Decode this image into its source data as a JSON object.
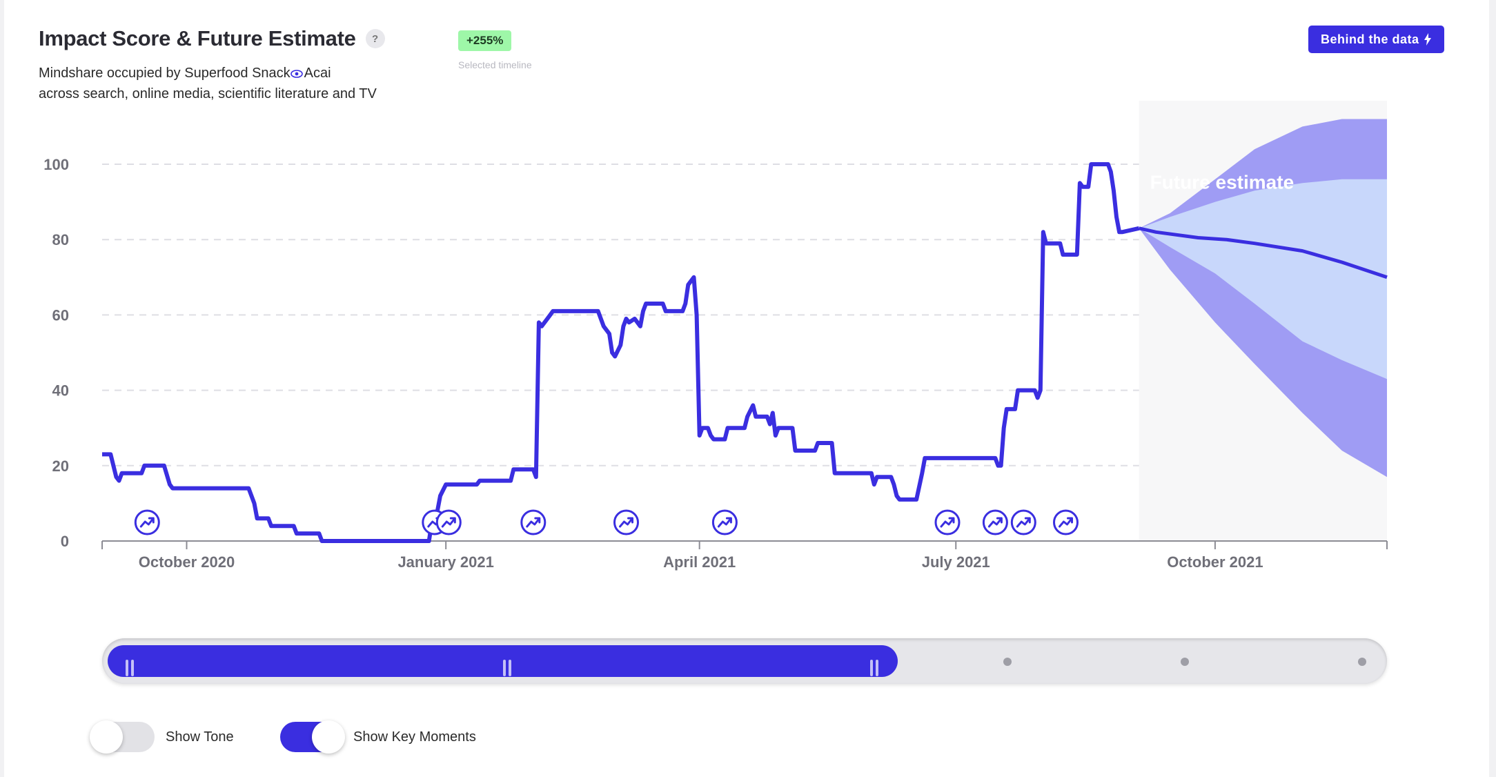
{
  "header": {
    "title": "Impact Score & Future Estimate",
    "help": "?",
    "badge": "+255%",
    "badge_caption": "Selected timeline",
    "subtitle_line1_prefix": "Mindshare occupied by Superfood Snack",
    "subtitle_line1_topic": "Acai",
    "subtitle_line2": "across search, online media, scientific literature and TV",
    "behind_button": "Behind the data"
  },
  "colors": {
    "accent": "#3a2ee0",
    "band_outer": "#9f9cf4",
    "band_inner": "#c8d7fb",
    "badge": "#9ef7a8"
  },
  "icons": [
    "help-icon",
    "eye-icon",
    "bolt-icon",
    "key-moment-icon",
    "slider-handle-icon"
  ],
  "chart_data": {
    "type": "line",
    "title": "Impact Score & Future Estimate",
    "ylim": [
      0,
      100
    ],
    "yticks": [
      0,
      20,
      40,
      60,
      80,
      100
    ],
    "xlim": [
      "2020-09-01",
      "2021-12-01"
    ],
    "xticks": [
      {
        "date": "2020-10-01",
        "label": "October 2020"
      },
      {
        "date": "2021-01-01",
        "label": "January 2021"
      },
      {
        "date": "2021-04-01",
        "label": "April 2021"
      },
      {
        "date": "2021-07-01",
        "label": "July 2021"
      },
      {
        "date": "2021-10-01",
        "label": "October 2021"
      }
    ],
    "grid": true,
    "series": [
      {
        "kind": "history",
        "points": [
          [
            "2020-09-01",
            23
          ],
          [
            "2020-09-04",
            23
          ],
          [
            "2020-09-06",
            17
          ],
          [
            "2020-09-07",
            16
          ],
          [
            "2020-09-08",
            18
          ],
          [
            "2020-09-15",
            18
          ],
          [
            "2020-09-16",
            20
          ],
          [
            "2020-09-23",
            20
          ],
          [
            "2020-09-25",
            15
          ],
          [
            "2020-09-26",
            14
          ],
          [
            "2020-10-23",
            14
          ],
          [
            "2020-10-25",
            10
          ],
          [
            "2020-10-26",
            6
          ],
          [
            "2020-10-30",
            6
          ],
          [
            "2020-10-31",
            4
          ],
          [
            "2020-11-08",
            4
          ],
          [
            "2020-11-09",
            2
          ],
          [
            "2020-11-17",
            2
          ],
          [
            "2020-11-18",
            0
          ],
          [
            "2020-12-26",
            0
          ],
          [
            "2020-12-27",
            5
          ],
          [
            "2020-12-29",
            8
          ],
          [
            "2020-12-30",
            12
          ],
          [
            "2021-01-01",
            15
          ],
          [
            "2021-01-12",
            15
          ],
          [
            "2021-01-13",
            16
          ],
          [
            "2021-01-24",
            16
          ],
          [
            "2021-01-25",
            19
          ],
          [
            "2021-02-01",
            19
          ],
          [
            "2021-02-02",
            17
          ],
          [
            "2021-02-03",
            58
          ],
          [
            "2021-02-04",
            57
          ],
          [
            "2021-02-06",
            59
          ],
          [
            "2021-02-07",
            60
          ],
          [
            "2021-02-08",
            61
          ],
          [
            "2021-02-24",
            61
          ],
          [
            "2021-02-26",
            57
          ],
          [
            "2021-02-28",
            55
          ],
          [
            "2021-03-01",
            50
          ],
          [
            "2021-03-02",
            49
          ],
          [
            "2021-03-04",
            52
          ],
          [
            "2021-03-05",
            57
          ],
          [
            "2021-03-06",
            59
          ],
          [
            "2021-03-07",
            58
          ],
          [
            "2021-03-09",
            59
          ],
          [
            "2021-03-11",
            57
          ],
          [
            "2021-03-12",
            61
          ],
          [
            "2021-03-13",
            63
          ],
          [
            "2021-03-19",
            63
          ],
          [
            "2021-03-20",
            61
          ],
          [
            "2021-03-26",
            61
          ],
          [
            "2021-03-27",
            63
          ],
          [
            "2021-03-28",
            68
          ],
          [
            "2021-03-30",
            70
          ],
          [
            "2021-03-31",
            60
          ],
          [
            "2021-04-01",
            28
          ],
          [
            "2021-04-02",
            30
          ],
          [
            "2021-04-04",
            30
          ],
          [
            "2021-04-05",
            28
          ],
          [
            "2021-04-06",
            27
          ],
          [
            "2021-04-10",
            27
          ],
          [
            "2021-04-11",
            30
          ],
          [
            "2021-04-17",
            30
          ],
          [
            "2021-04-18",
            33
          ],
          [
            "2021-04-20",
            36
          ],
          [
            "2021-04-21",
            33
          ],
          [
            "2021-04-25",
            33
          ],
          [
            "2021-04-26",
            31
          ],
          [
            "2021-04-27",
            34
          ],
          [
            "2021-04-28",
            28
          ],
          [
            "2021-04-29",
            30
          ],
          [
            "2021-05-04",
            30
          ],
          [
            "2021-05-05",
            24
          ],
          [
            "2021-05-12",
            24
          ],
          [
            "2021-05-13",
            26
          ],
          [
            "2021-05-18",
            26
          ],
          [
            "2021-05-19",
            18
          ],
          [
            "2021-06-01",
            18
          ],
          [
            "2021-06-02",
            15
          ],
          [
            "2021-06-03",
            17
          ],
          [
            "2021-06-08",
            17
          ],
          [
            "2021-06-09",
            15
          ],
          [
            "2021-06-10",
            12
          ],
          [
            "2021-06-11",
            11
          ],
          [
            "2021-06-17",
            11
          ],
          [
            "2021-06-19",
            18
          ],
          [
            "2021-06-20",
            22
          ],
          [
            "2021-07-15",
            22
          ],
          [
            "2021-07-16",
            20
          ],
          [
            "2021-07-17",
            20
          ],
          [
            "2021-07-18",
            30
          ],
          [
            "2021-07-19",
            35
          ],
          [
            "2021-07-22",
            35
          ],
          [
            "2021-07-23",
            40
          ],
          [
            "2021-07-29",
            40
          ],
          [
            "2021-07-30",
            38
          ],
          [
            "2021-07-31",
            40
          ],
          [
            "2021-08-01",
            82
          ],
          [
            "2021-08-02",
            79
          ],
          [
            "2021-08-07",
            79
          ],
          [
            "2021-08-08",
            76
          ],
          [
            "2021-08-13",
            76
          ],
          [
            "2021-08-14",
            95
          ],
          [
            "2021-08-15",
            94
          ],
          [
            "2021-08-17",
            94
          ],
          [
            "2021-08-18",
            100
          ],
          [
            "2021-08-24",
            100
          ],
          [
            "2021-08-25",
            98
          ],
          [
            "2021-08-26",
            93
          ],
          [
            "2021-08-27",
            86
          ],
          [
            "2021-08-28",
            82
          ],
          [
            "2021-08-29",
            82
          ],
          [
            "2021-09-04",
            83
          ]
        ]
      },
      {
        "kind": "forecast",
        "label": "Future estimate",
        "points": [
          [
            "2021-09-04",
            83
          ],
          [
            "2021-09-10",
            82
          ],
          [
            "2021-09-25",
            80.5
          ],
          [
            "2021-10-05",
            80
          ],
          [
            "2021-10-15",
            79
          ],
          [
            "2021-11-01",
            77
          ],
          [
            "2021-11-15",
            74
          ],
          [
            "2021-12-01",
            70
          ]
        ],
        "band_outer": [
          [
            "2021-09-04",
            83,
            83
          ],
          [
            "2021-09-15",
            87,
            72
          ],
          [
            "2021-10-01",
            96,
            58
          ],
          [
            "2021-10-15",
            104,
            47
          ],
          [
            "2021-11-01",
            110,
            34
          ],
          [
            "2021-11-15",
            112,
            24
          ],
          [
            "2021-12-01",
            112,
            17
          ]
        ],
        "band_inner": [
          [
            "2021-09-04",
            83,
            83
          ],
          [
            "2021-09-15",
            86,
            78
          ],
          [
            "2021-10-01",
            90,
            71
          ],
          [
            "2021-10-15",
            93,
            63
          ],
          [
            "2021-11-01",
            95,
            53
          ],
          [
            "2021-11-15",
            96,
            48
          ],
          [
            "2021-12-01",
            96,
            43
          ]
        ]
      }
    ],
    "key_moments": [
      "2020-09-17",
      "2020-12-28",
      "2021-01-02",
      "2021-02-01",
      "2021-03-06",
      "2021-04-10",
      "2021-06-28",
      "2021-07-15",
      "2021-07-25",
      "2021-08-09"
    ]
  },
  "slider": {
    "selected_fraction": 0.62
  },
  "toggles": [
    {
      "label": "Show Tone",
      "on": false
    },
    {
      "label": "Show Key Moments",
      "on": true
    }
  ]
}
